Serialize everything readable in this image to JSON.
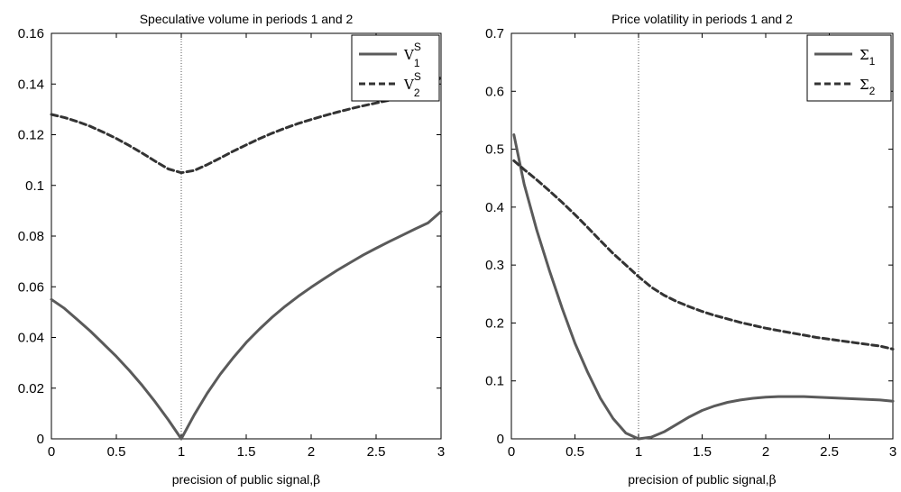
{
  "chart_data": [
    {
      "type": "line",
      "title": "Speculative volume in periods 1 and 2",
      "xlabel": "precision of public signal,",
      "xlabel_symbol": "β",
      "ylabel": "",
      "xlim": [
        0,
        3
      ],
      "ylim": [
        0,
        0.16
      ],
      "xticks": [
        "0",
        "0.5",
        "1",
        "1.5",
        "2",
        "2.5",
        "3"
      ],
      "yticks": [
        "0",
        "0.02",
        "0.04",
        "0.06",
        "0.08",
        "0.1",
        "0.12",
        "0.14",
        "0.16"
      ],
      "grid": false,
      "legend_position": "top-right",
      "reference_line_x": 1,
      "series": [
        {
          "name": "V",
          "name_sup": "S",
          "name_sub": "1",
          "style": "solid",
          "color": "#5a5a5a",
          "x": [
            0,
            0.1,
            0.2,
            0.3,
            0.4,
            0.5,
            0.6,
            0.7,
            0.8,
            0.9,
            1.0,
            1.1,
            1.2,
            1.3,
            1.4,
            1.5,
            1.6,
            1.7,
            1.8,
            1.9,
            2.0,
            2.1,
            2.2,
            2.3,
            2.4,
            2.5,
            2.6,
            2.7,
            2.8,
            2.9,
            3.0
          ],
          "y": [
            0.055,
            0.0515,
            0.047,
            0.0425,
            0.0375,
            0.0325,
            0.027,
            0.021,
            0.0145,
            0.0075,
            0.0,
            0.0095,
            0.018,
            0.0255,
            0.032,
            0.038,
            0.0432,
            0.048,
            0.0523,
            0.0562,
            0.0598,
            0.0632,
            0.0665,
            0.0695,
            0.0725,
            0.0752,
            0.0778,
            0.0803,
            0.0828,
            0.0852,
            0.0897
          ]
        },
        {
          "name": "V",
          "name_sup": "S",
          "name_sub": "2",
          "style": "dashed",
          "color": "#333333",
          "x": [
            0,
            0.1,
            0.2,
            0.3,
            0.4,
            0.5,
            0.6,
            0.7,
            0.8,
            0.9,
            1.0,
            1.1,
            1.2,
            1.3,
            1.4,
            1.5,
            1.6,
            1.7,
            1.8,
            1.9,
            2.0,
            2.1,
            2.2,
            2.3,
            2.4,
            2.5,
            2.6,
            2.7,
            2.8,
            2.9,
            3.0
          ],
          "y": [
            0.128,
            0.1268,
            0.1252,
            0.1233,
            0.121,
            0.1185,
            0.1157,
            0.1127,
            0.1095,
            0.1065,
            0.105,
            0.1059,
            0.1082,
            0.1108,
            0.1135,
            0.116,
            0.1184,
            0.1206,
            0.1226,
            0.1244,
            0.126,
            0.1275,
            0.1289,
            0.1302,
            0.1314,
            0.1325,
            0.1336,
            0.1346,
            0.1356,
            0.1365,
            0.143
          ]
        }
      ]
    },
    {
      "type": "line",
      "title": "Price volatility in periods 1 and 2",
      "xlabel": "precision of public signal,",
      "xlabel_symbol": "β",
      "ylabel": "",
      "xlim": [
        0,
        3
      ],
      "ylim": [
        0,
        0.7
      ],
      "xticks": [
        "0",
        "0.5",
        "1",
        "1.5",
        "2",
        "2.5",
        "3"
      ],
      "yticks": [
        "0",
        "0.1",
        "0.2",
        "0.3",
        "0.4",
        "0.5",
        "0.6",
        "0.7"
      ],
      "grid": false,
      "legend_position": "top-right",
      "reference_line_x": 1,
      "series": [
        {
          "name": "Σ",
          "name_sup": "",
          "name_sub": "1",
          "style": "solid",
          "color": "#5a5a5a",
          "x": [
            0.02,
            0.1,
            0.2,
            0.3,
            0.4,
            0.5,
            0.6,
            0.7,
            0.8,
            0.9,
            1.0,
            1.1,
            1.2,
            1.3,
            1.4,
            1.5,
            1.6,
            1.7,
            1.8,
            1.9,
            2.0,
            2.1,
            2.2,
            2.3,
            2.4,
            2.5,
            2.6,
            2.7,
            2.8,
            2.9,
            3.0
          ],
          "y": [
            0.525,
            0.44,
            0.36,
            0.29,
            0.225,
            0.165,
            0.115,
            0.07,
            0.035,
            0.01,
            0.0,
            0.003,
            0.012,
            0.025,
            0.038,
            0.049,
            0.057,
            0.063,
            0.067,
            0.07,
            0.072,
            0.073,
            0.073,
            0.073,
            0.072,
            0.071,
            0.07,
            0.069,
            0.068,
            0.067,
            0.065
          ]
        },
        {
          "name": "Σ",
          "name_sup": "",
          "name_sub": "2",
          "style": "dashed",
          "color": "#333333",
          "x": [
            0.02,
            0.1,
            0.2,
            0.3,
            0.4,
            0.5,
            0.6,
            0.7,
            0.8,
            0.9,
            1.0,
            1.1,
            1.2,
            1.3,
            1.4,
            1.5,
            1.6,
            1.7,
            1.8,
            1.9,
            2.0,
            2.1,
            2.2,
            2.3,
            2.4,
            2.5,
            2.6,
            2.7,
            2.8,
            2.9,
            3.0
          ],
          "y": [
            0.48,
            0.465,
            0.447,
            0.428,
            0.408,
            0.387,
            0.365,
            0.342,
            0.32,
            0.3,
            0.28,
            0.262,
            0.248,
            0.237,
            0.228,
            0.22,
            0.213,
            0.207,
            0.201,
            0.196,
            0.191,
            0.187,
            0.183,
            0.179,
            0.175,
            0.172,
            0.169,
            0.166,
            0.163,
            0.16,
            0.155
          ]
        }
      ]
    }
  ]
}
